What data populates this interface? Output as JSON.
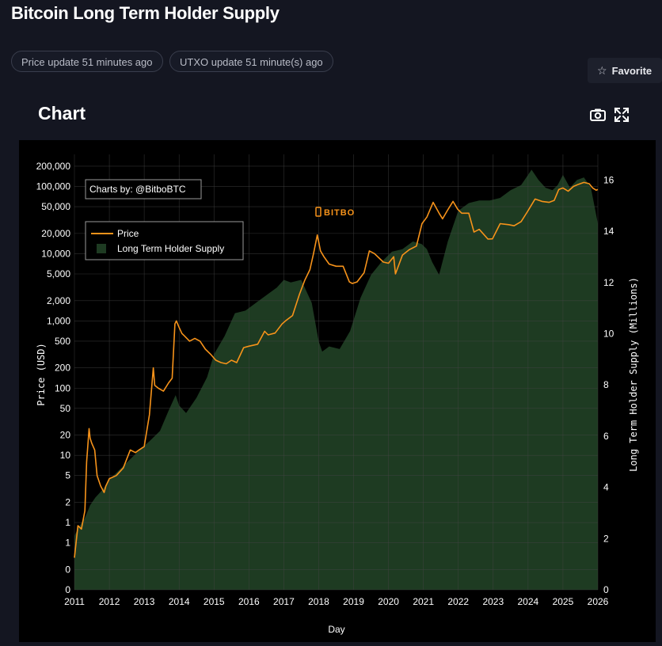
{
  "page": {
    "title": "Bitcoin Long Term Holder Supply",
    "price_update": "Price update 51 minutes ago",
    "utxo_update": "UTXO update 51 minute(s) ago",
    "favorite_label": "Favorite"
  },
  "chart_section": {
    "heading": "Chart",
    "credit": "Charts by: @BitboBTC",
    "logo_text": "BITBO"
  },
  "colors": {
    "price_line": "#f7931a",
    "supply_fill": "#1e3b22",
    "background": "#000000"
  },
  "chart_data": {
    "type": "line",
    "title": "Bitcoin Long Term Holder Supply",
    "xlabel": "Day",
    "ylabel": "Price (USD)",
    "y2label": "Long Term Holder Supply (Millions)",
    "x_range": [
      2011,
      2026
    ],
    "x_ticks": [
      2011,
      2012,
      2013,
      2014,
      2015,
      2016,
      2017,
      2018,
      2019,
      2020,
      2021,
      2022,
      2023,
      2024,
      2025,
      2026
    ],
    "y_scale": "log",
    "y_ticks": [
      0.1,
      0.2,
      0.5,
      1,
      2,
      5,
      10,
      20,
      50,
      100,
      200,
      500,
      1000,
      2000,
      5000,
      10000,
      20000,
      50000,
      100000,
      200000
    ],
    "y_tick_labels": [
      "0",
      "0",
      "1",
      "1",
      "2",
      "5",
      "10",
      "20",
      "50",
      "100",
      "200",
      "500",
      "1,000",
      "2,000",
      "5,000",
      "10,000",
      "20,000",
      "50,000",
      "100,000",
      "200,000"
    ],
    "y2_range": [
      0,
      17
    ],
    "y2_ticks": [
      0,
      2,
      4,
      6,
      8,
      10,
      12,
      14,
      16
    ],
    "legend": [
      "Price",
      "Long Term Holder Supply"
    ],
    "legend_position": "top-left",
    "grid": true,
    "series": [
      {
        "name": "Price",
        "axis": "left",
        "x": [
          2011.0,
          2011.1,
          2011.2,
          2011.3,
          2011.35,
          2011.42,
          2011.45,
          2011.5,
          2011.58,
          2011.65,
          2011.75,
          2011.85,
          2011.9,
          2012.0,
          2012.2,
          2012.4,
          2012.6,
          2012.75,
          2012.85,
          2013.0,
          2013.15,
          2013.26,
          2013.3,
          2013.4,
          2013.55,
          2013.7,
          2013.8,
          2013.88,
          2013.92,
          2014.0,
          2014.08,
          2014.15,
          2014.3,
          2014.45,
          2014.6,
          2014.75,
          2014.9,
          2015.05,
          2015.2,
          2015.35,
          2015.5,
          2015.65,
          2015.85,
          2016.0,
          2016.25,
          2016.45,
          2016.55,
          2016.75,
          2016.95,
          2017.05,
          2017.25,
          2017.45,
          2017.6,
          2017.75,
          2017.85,
          2017.96,
          2018.05,
          2018.15,
          2018.3,
          2018.5,
          2018.7,
          2018.88,
          2018.96,
          2019.1,
          2019.3,
          2019.45,
          2019.6,
          2019.85,
          2020.0,
          2020.15,
          2020.2,
          2020.4,
          2020.6,
          2020.8,
          2020.96,
          2021.1,
          2021.28,
          2021.45,
          2021.55,
          2021.7,
          2021.85,
          2021.98,
          2022.1,
          2022.3,
          2022.45,
          2022.6,
          2022.85,
          2022.98,
          2023.2,
          2023.45,
          2023.6,
          2023.8,
          2023.98,
          2024.2,
          2024.4,
          2024.6,
          2024.75,
          2024.88,
          2025.0,
          2025.15,
          2025.3,
          2025.45,
          2025.6,
          2025.75,
          2025.85,
          2025.95,
          2026.0
        ],
        "values": [
          0.3,
          0.9,
          0.8,
          1.5,
          8,
          25,
          18,
          15,
          12,
          5,
          3.5,
          2.8,
          3.5,
          4.5,
          5,
          6.5,
          12,
          11,
          12,
          13.5,
          40,
          200,
          110,
          100,
          90,
          120,
          140,
          900,
          1000,
          800,
          650,
          600,
          500,
          550,
          500,
          380,
          320,
          260,
          240,
          230,
          260,
          240,
          400,
          420,
          450,
          700,
          620,
          660,
          900,
          1000,
          1200,
          2500,
          4000,
          5800,
          10000,
          19000,
          11000,
          9000,
          7000,
          6500,
          6500,
          3800,
          3600,
          3800,
          5200,
          11000,
          10000,
          7500,
          7200,
          9000,
          5000,
          9500,
          11500,
          13000,
          28000,
          35000,
          58000,
          40000,
          33000,
          45000,
          60000,
          46000,
          40000,
          40000,
          21000,
          23000,
          16500,
          16600,
          28000,
          27000,
          26000,
          30000,
          42000,
          65000,
          60000,
          58000,
          62000,
          90000,
          95000,
          85000,
          100000,
          108000,
          115000,
          110000,
          95000,
          88000,
          90000
        ]
      },
      {
        "name": "Long Term Holder Supply",
        "axis": "right",
        "unit": "Millions",
        "x": [
          2011.0,
          2011.1,
          2011.2,
          2011.3,
          2011.45,
          2011.6,
          2011.8,
          2012.0,
          2012.3,
          2012.6,
          2012.9,
          2013.15,
          2013.45,
          2013.7,
          2013.9,
          2014.0,
          2014.2,
          2014.5,
          2014.8,
          2015.0,
          2015.3,
          2015.6,
          2015.9,
          2016.2,
          2016.5,
          2016.8,
          2017.0,
          2017.2,
          2017.5,
          2017.8,
          2018.0,
          2018.1,
          2018.3,
          2018.6,
          2018.9,
          2019.2,
          2019.5,
          2019.8,
          2020.1,
          2020.4,
          2020.7,
          2020.95,
          2021.1,
          2021.25,
          2021.45,
          2021.7,
          2022.0,
          2022.3,
          2022.6,
          2022.9,
          2023.2,
          2023.5,
          2023.8,
          2024.0,
          2024.1,
          2024.3,
          2024.5,
          2024.7,
          2024.85,
          2025.0,
          2025.2,
          2025.4,
          2025.6,
          2025.8,
          2026.0
        ],
        "values": [
          2.1,
          2.4,
          2.6,
          2.8,
          3.3,
          3.6,
          3.9,
          4.3,
          4.7,
          5.1,
          5.5,
          5.8,
          6.2,
          7.0,
          7.6,
          7.2,
          6.9,
          7.5,
          8.3,
          9.2,
          9.9,
          10.8,
          10.9,
          11.2,
          11.5,
          11.8,
          12.1,
          12.0,
          12.1,
          11.2,
          9.7,
          9.3,
          9.5,
          9.4,
          10.1,
          11.4,
          12.3,
          12.8,
          13.2,
          13.3,
          13.6,
          13.5,
          13.3,
          12.8,
          12.3,
          13.6,
          14.8,
          15.1,
          15.2,
          15.2,
          15.3,
          15.6,
          15.8,
          16.2,
          16.4,
          16.0,
          15.7,
          15.6,
          15.8,
          16.2,
          15.7,
          16.0,
          16.1,
          15.7,
          14.3
        ]
      }
    ]
  }
}
